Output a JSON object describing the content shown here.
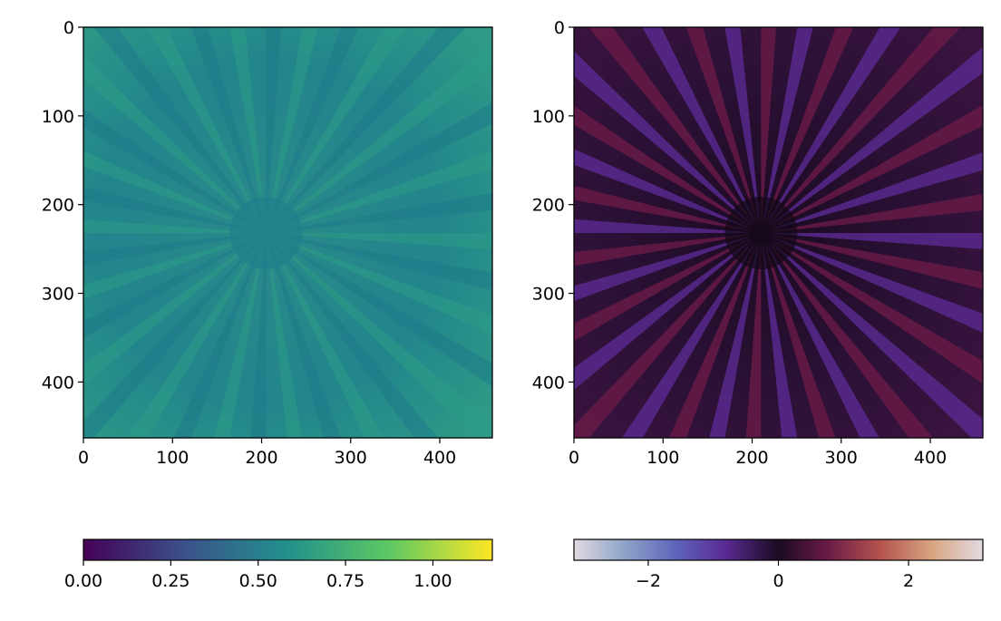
{
  "chart_data": [
    {
      "type": "heatmap",
      "title": "",
      "xlabel": "",
      "ylabel": "",
      "xlim": [
        0,
        459
      ],
      "ylim": [
        463,
        0
      ],
      "x_ticks": [
        0,
        100,
        200,
        300,
        400
      ],
      "y_ticks": [
        0,
        100,
        200,
        300,
        400
      ],
      "x_tick_labels": [
        "0",
        "100",
        "200",
        "300",
        "400"
      ],
      "y_tick_labels": [
        "0",
        "100",
        "200",
        "300",
        "400"
      ],
      "colormap": "viridis",
      "image_description_center": [
        205,
        232
      ],
      "spokes": 36,
      "colorbar": {
        "orientation": "horizontal",
        "placement": "bottom",
        "range": [
          0,
          1.17
        ],
        "ticks": [
          0,
          0.25,
          0.5,
          0.75,
          1.0
        ],
        "tick_labels": [
          "0.00",
          "0.25",
          "0.50",
          "0.75",
          "1.00"
        ]
      }
    },
    {
      "type": "heatmap",
      "title": "",
      "xlabel": "",
      "ylabel": "",
      "xlim": [
        0,
        459
      ],
      "ylim": [
        463,
        0
      ],
      "x_ticks": [
        0,
        100,
        200,
        300,
        400
      ],
      "y_ticks": [
        0,
        100,
        200,
        300,
        400
      ],
      "x_tick_labels": [
        "0",
        "100",
        "200",
        "300",
        "400"
      ],
      "y_tick_labels": [
        "0",
        "100",
        "200",
        "300",
        "400"
      ],
      "colormap": "twilight_shifted",
      "image_description_center": [
        210,
        232
      ],
      "spokes": 36,
      "colorbar": {
        "orientation": "horizontal",
        "placement": "bottom",
        "range": [
          -3.14159,
          3.14159
        ],
        "ticks": [
          -2,
          0,
          2
        ],
        "tick_labels": [
          "−2",
          "0",
          "2"
        ]
      }
    }
  ],
  "colors": {
    "viridis": [
      "#440154",
      "#3b528b",
      "#21918c",
      "#5ec962",
      "#fde725"
    ],
    "twilight_shifted": [
      "#e2d9e2",
      "#6f97c1",
      "#5a3fa8",
      "#2f1446",
      "#1a0b21",
      "#5e1c45",
      "#b5544e",
      "#d8a783",
      "#e2d9e2"
    ]
  }
}
